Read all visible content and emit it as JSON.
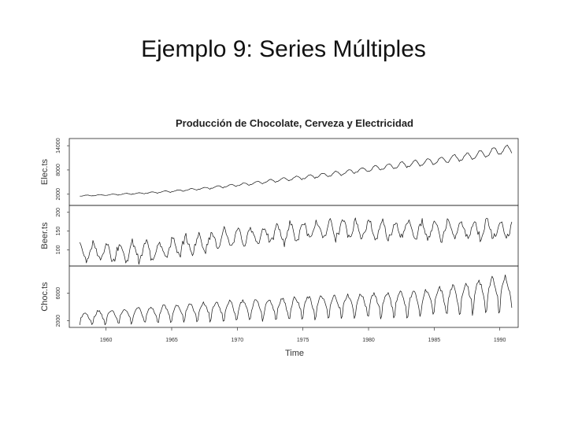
{
  "slide": {
    "title": "Ejemplo 9: Series Múltiples"
  },
  "chart_data": {
    "type": "line",
    "title": "Producción de Chocolate, Cerveza y Electricidad",
    "xlabel": "Time",
    "xlim": [
      1957.2,
      1991.4
    ],
    "xticks": [
      "1960",
      "1965",
      "1970",
      "1975",
      "1980",
      "1985",
      "1990"
    ],
    "grid": false,
    "frequency": "monthly",
    "start": 1958.0,
    "end": 1990.92,
    "series": [
      {
        "name": "Elec.ts",
        "ylim": [
          0,
          15000
        ],
        "yticks": [
          "2000",
          "8000",
          "14000"
        ],
        "annual_means": [
          1650,
          1760,
          1880,
          2050,
          2200,
          2380,
          2600,
          2850,
          3150,
          3450,
          3800,
          4100,
          4450,
          4800,
          5200,
          5600,
          6000,
          6300,
          6700,
          7100,
          7500,
          7950,
          8400,
          8800,
          9200,
          9600,
          10000,
          10400,
          10850,
          11300,
          11900,
          12500,
          13000
        ],
        "seasonal_amplitude_fraction": 0.08
      },
      {
        "name": "Beer.ts",
        "ylim": [
          65,
          210
        ],
        "yticks": [
          "100",
          "150",
          "200"
        ],
        "annual_means": [
          92,
          93,
          94,
          95,
          96,
          98,
          102,
          108,
          114,
          120,
          126,
          132,
          136,
          138,
          140,
          143,
          148,
          150,
          152,
          153,
          155,
          154,
          153,
          152,
          154,
          153,
          152,
          151,
          153,
          152,
          154,
          153,
          155
        ],
        "seasonal_amplitude": 22
      },
      {
        "name": "Choc.ts",
        "ylim": [
          1500,
          9500
        ],
        "yticks": [
          "2000",
          "6000"
        ],
        "annual_means": [
          2600,
          2800,
          2950,
          3050,
          3200,
          3300,
          3450,
          3550,
          3650,
          3750,
          3850,
          3950,
          4050,
          4100,
          4200,
          4300,
          4400,
          4450,
          4550,
          4600,
          4700,
          4800,
          4850,
          4950,
          5050,
          5150,
          5300,
          5500,
          5700,
          6000,
          6300,
          6600,
          6800
        ],
        "seasonal_amplitude_fraction": 0.28
      }
    ]
  }
}
